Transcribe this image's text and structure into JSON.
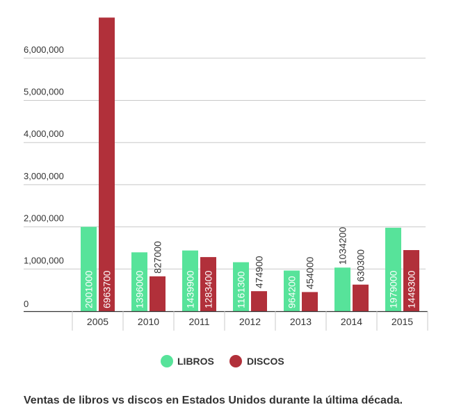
{
  "chart_data": {
    "type": "bar",
    "categories": [
      "2005",
      "2010",
      "2011",
      "2012",
      "2013",
      "2014",
      "2015"
    ],
    "series": [
      {
        "name": "LIBROS",
        "color": "#57e39a",
        "values": [
          2001000,
          1396000,
          1439900,
          1161300,
          964200,
          1034200,
          1979000
        ]
      },
      {
        "name": "DISCOS",
        "color": "#b1303a",
        "values": [
          6963700,
          827000,
          1283400,
          474900,
          454000,
          630300,
          1449300
        ]
      }
    ],
    "yticks": [
      0,
      1000000,
      2000000,
      3000000,
      4000000,
      5000000,
      6000000
    ],
    "ytick_labels": [
      "0",
      "1,000,000",
      "2,000,000",
      "3,000,000",
      "4,000,000",
      "5,000,000",
      "6,000,000"
    ],
    "ylim": [
      0,
      7000000
    ],
    "grid": true,
    "legend_position": "bottom-center",
    "title": "",
    "xlabel": "",
    "ylabel": ""
  },
  "caption": "Ventas de libros vs discos en Estados Unidos durante la última década."
}
